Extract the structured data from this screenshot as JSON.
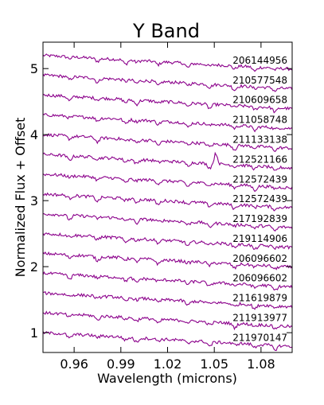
{
  "chart_data": {
    "type": "line",
    "title": "Y Band",
    "xlabel": "Wavelength (microns)",
    "ylabel": "Normalized Flux + Offset",
    "xlim": [
      0.94,
      1.1
    ],
    "ylim": [
      0.7,
      5.4
    ],
    "xticks": [
      0.96,
      0.99,
      1.02,
      1.05,
      1.08
    ],
    "xtick_labels": [
      "0.96",
      "0.99",
      "1.02",
      "1.05",
      "1.08"
    ],
    "yticks": [
      1,
      2,
      3,
      4,
      5
    ],
    "ytick_labels": [
      "1",
      "2",
      "3",
      "4",
      "5"
    ],
    "grid": false,
    "line_color": "#8B008B",
    "series": [
      {
        "name": "206144956",
        "offset": 5.2,
        "slope": -1.3
      },
      {
        "name": "210577548",
        "offset": 4.9,
        "slope": -1.3
      },
      {
        "name": "210609658",
        "offset": 4.6,
        "slope": -1.3
      },
      {
        "name": "211058748",
        "offset": 4.3,
        "slope": -1.3
      },
      {
        "name": "211133138",
        "offset": 4.0,
        "slope": -1.3
      },
      {
        "name": "212521166",
        "offset": 3.7,
        "slope": -1.3
      },
      {
        "name": "212572439",
        "offset": 3.4,
        "slope": -1.3
      },
      {
        "name": "212572439",
        "offset": 3.1,
        "slope": -1.3
      },
      {
        "name": "217192839",
        "offset": 2.8,
        "slope": -1.3
      },
      {
        "name": "219114906",
        "offset": 2.5,
        "slope": -1.3
      },
      {
        "name": "206096602",
        "offset": 2.2,
        "slope": -1.3
      },
      {
        "name": "206096602",
        "offset": 1.9,
        "slope": -1.3
      },
      {
        "name": "211619879",
        "offset": 1.6,
        "slope": -1.3
      },
      {
        "name": "211913977",
        "offset": 1.3,
        "slope": -1.3
      },
      {
        "name": "211970147",
        "offset": 1.0,
        "slope": -1.3
      }
    ]
  }
}
